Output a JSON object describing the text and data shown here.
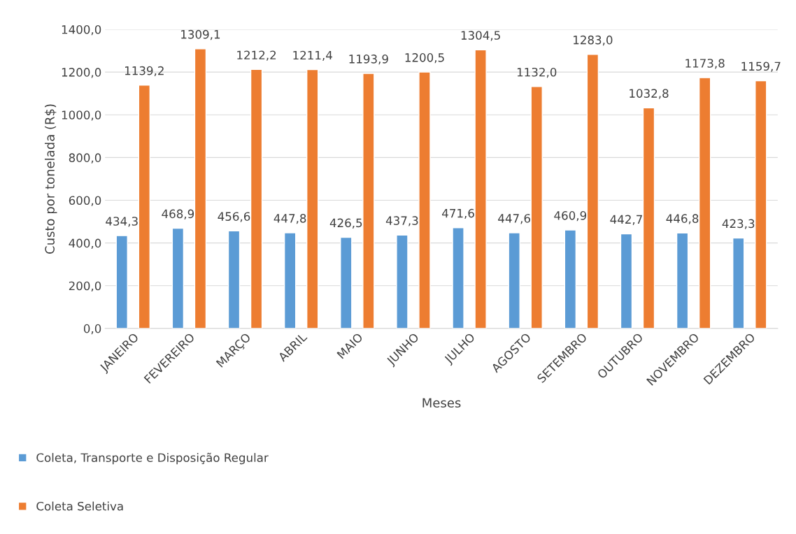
{
  "chart_data": {
    "type": "bar",
    "xlabel": "Meses",
    "ylabel": "Custo por tonelada (R$)",
    "categories": [
      "JANEIRO",
      "FEVEREIRO",
      "MARÇO",
      "ABRIL",
      "MAIO",
      "JUNHO",
      "JULHO",
      "AGOSTO",
      "SETEMBRO",
      "OUTUBRO",
      "NOVEMBRO",
      "DEZEMBRO"
    ],
    "series": [
      {
        "name": "Coleta, Transporte e Disposição Regular",
        "color": "#5b9bd5",
        "values": [
          434.3,
          468.9,
          456.6,
          447.8,
          426.5,
          437.3,
          471.6,
          447.6,
          460.9,
          442.7,
          446.8,
          423.3
        ],
        "value_labels": [
          "434,3",
          "468,9",
          "456,6",
          "447,8",
          "426,5",
          "437,3",
          "471,6",
          "447,6",
          "460,9",
          "442,7",
          "446,8",
          "423,3"
        ]
      },
      {
        "name": "Coleta Seletiva",
        "color": "#ed7d31",
        "values": [
          1139.2,
          1309.1,
          1212.2,
          1211.4,
          1193.9,
          1200.5,
          1304.5,
          1132.0,
          1283.0,
          1032.8,
          1173.8,
          1159.7
        ],
        "value_labels": [
          "1139,2",
          "1309,1",
          "1212,2",
          "1211,4",
          "1193,9",
          "1200,5",
          "1304,5",
          "1132,0",
          "1283,0",
          "1032,8",
          "1173,8",
          "1159,7"
        ]
      }
    ],
    "ylim": [
      0,
      1400
    ],
    "yticks": [
      {
        "value": 0,
        "label": "0,0"
      },
      {
        "value": 200,
        "label": "200,0"
      },
      {
        "value": 400,
        "label": "400,0"
      },
      {
        "value": 600,
        "label": "600,0"
      },
      {
        "value": 800,
        "label": "800,0"
      },
      {
        "value": 1000,
        "label": "1000,0"
      },
      {
        "value": 1200,
        "label": "1200,0"
      },
      {
        "value": 1400,
        "label": "1400,0"
      }
    ],
    "grid": "y",
    "legend": "bottom left"
  }
}
